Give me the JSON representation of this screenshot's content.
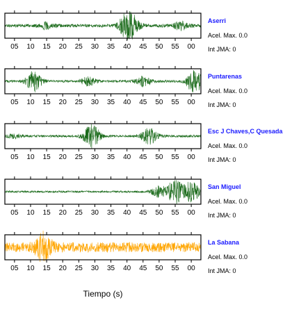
{
  "xlabel": "Tiempo (s)",
  "panels": [
    {
      "station": "Aserri",
      "acel_text": "Acel. Max. 0.0",
      "int_text": "Int JMA: 0",
      "color": "#1b6b1b",
      "tick_labels": [
        "05",
        "10",
        "15",
        "20",
        "25",
        "30",
        "35",
        "40",
        "45",
        "50",
        "55",
        "00"
      ]
    },
    {
      "station": "Puntarenas",
      "acel_text": "Acel. Max. 0.0",
      "int_text": "Int JMA: 0",
      "color": "#1b6b1b",
      "tick_labels": [
        "05",
        "10",
        "15",
        "20",
        "25",
        "30",
        "35",
        "40",
        "45",
        "50",
        "55",
        "00"
      ]
    },
    {
      "station": "Esc J Chaves,C Quesada",
      "acel_text": "Acel. Max. 0.0",
      "int_text": "Int JMA: 0",
      "color": "#1b6b1b",
      "tick_labels": [
        "05",
        "10",
        "15",
        "20",
        "25",
        "30",
        "35",
        "40",
        "45",
        "50",
        "55",
        "00"
      ]
    },
    {
      "station": "San Miguel",
      "acel_text": "Acel. Max. 0.0",
      "int_text": "Int JMA: 0",
      "color": "#1b6b1b",
      "tick_labels": [
        "05",
        "10",
        "15",
        "20",
        "25",
        "30",
        "35",
        "40",
        "45",
        "50",
        "55",
        "00"
      ]
    },
    {
      "station": "La Sabana",
      "acel_text": "Acel. Max. 0.0",
      "int_text": "Int JMA: 0",
      "color": "#ffa500",
      "tick_labels": [
        "05",
        "10",
        "15",
        "20",
        "25",
        "30",
        "35",
        "40",
        "45",
        "50",
        "55",
        "00"
      ]
    }
  ],
  "chart_data": [
    {
      "type": "line",
      "series": [
        {
          "name": "Aserri",
          "events": [
            {
              "t": 40,
              "amp": 1.0
            },
            {
              "t": 42,
              "amp": 0.45
            },
            {
              "t": 15,
              "amp": 0.25
            },
            {
              "t": 57,
              "amp": 0.35
            }
          ],
          "noise": 0.13
        }
      ]
    },
    {
      "type": "line",
      "series": [
        {
          "name": "Puntarenas",
          "events": [
            {
              "t": 11,
              "amp": 0.85
            },
            {
              "t": 28,
              "amp": 0.35
            },
            {
              "t": 45,
              "amp": 0.4
            },
            {
              "t": 61,
              "amp": 1.0
            }
          ],
          "noise": 0.1
        }
      ]
    },
    {
      "type": "line",
      "series": [
        {
          "name": "Esc J Chaves,C Quesada",
          "events": [
            {
              "t": 29,
              "amp": 1.0
            },
            {
              "t": 47,
              "amp": 0.65
            },
            {
              "t": 5,
              "amp": 0.15
            }
          ],
          "noise": 0.1
        }
      ]
    },
    {
      "type": "line",
      "series": [
        {
          "name": "San Miguel",
          "events": [
            {
              "t": 55,
              "amp": 1.0
            },
            {
              "t": 60,
              "amp": 0.9
            },
            {
              "t": 50,
              "amp": 0.45
            }
          ],
          "noise": 0.08
        }
      ]
    },
    {
      "type": "line",
      "series": [
        {
          "name": "La Sabana",
          "events": [
            {
              "t": 14,
              "amp": 1.0
            }
          ],
          "noise": 0.42
        }
      ]
    }
  ]
}
